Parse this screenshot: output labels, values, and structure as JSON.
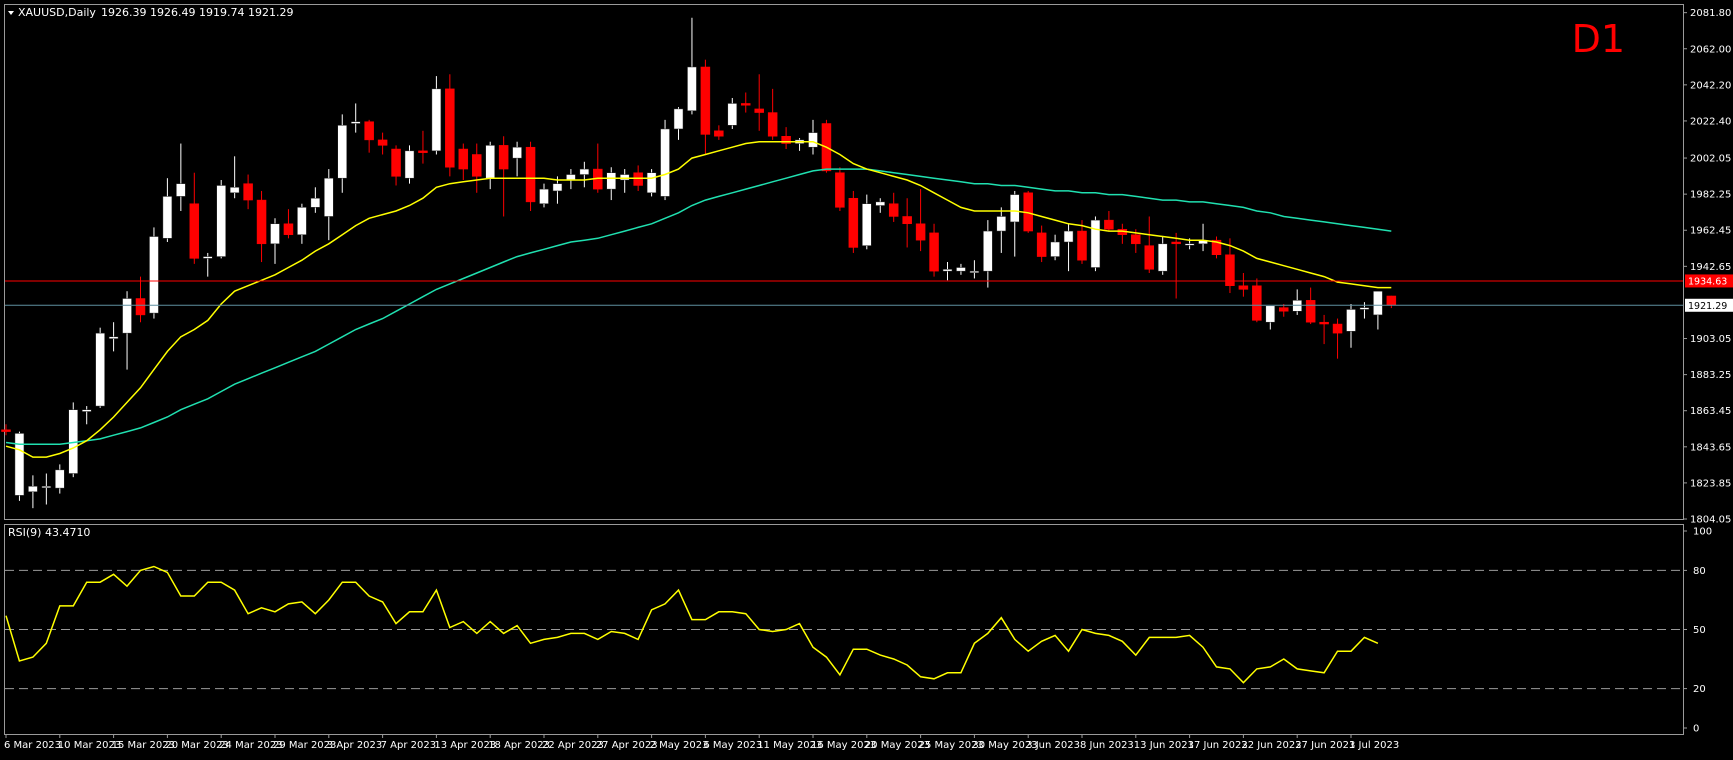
{
  "header": {
    "symbol_label": "XAUUSD,Daily",
    "ohlc_label": "1926.39 1926.49 1919.74 1921.29",
    "timeframe_badge": "D1"
  },
  "rsi_header": {
    "label": "RSI(9) 43.4710"
  },
  "colors": {
    "background": "#000000",
    "grid": "#9a9a9a",
    "bull_candle": "#ffffff",
    "bear_candle": "#ff0000",
    "ma_fast": "#ffff00",
    "ma_slow": "#20e0b0",
    "rsi_line": "#ffff00",
    "hline": "#ff0000",
    "price_line": "#5f8fa0",
    "badge": "#ff0000"
  },
  "chart_data": [
    {
      "type": "candlestick",
      "title": "XAUUSD,Daily",
      "y_ticks": [
        "2081.80",
        "2062.00",
        "2042.20",
        "2022.40",
        "2002.05",
        "1982.25",
        "1962.45",
        "1942.65",
        "1921.29",
        "1903.05",
        "1883.25",
        "1863.45",
        "1843.65",
        "1823.85",
        "1804.05"
      ],
      "y_tick_values": [
        2081.8,
        2062.0,
        2042.2,
        2022.4,
        2002.05,
        1982.25,
        1962.45,
        1942.65,
        1921.29,
        1903.05,
        1883.25,
        1863.45,
        1843.65,
        1823.85,
        1804.05
      ],
      "ylim": [
        1804.05,
        2086
      ],
      "x_tick_labels": [
        "6 Mar 2023",
        "10 Mar 2023",
        "15 Mar 2023",
        "20 Mar 2023",
        "24 Mar 2023",
        "29 Mar 2023",
        "3 Apr 2023",
        "7 Apr 2023",
        "13 Apr 2023",
        "18 Apr 2023",
        "22 Apr 2023",
        "27 Apr 2023",
        "2 May 2023",
        "6 May 2023",
        "11 May 2023",
        "16 May 2023",
        "20 May 2023",
        "25 May 2023",
        "30 May 2023",
        "3 Jun 2023",
        "8 Jun 2023",
        "13 Jun 2023",
        "17 Jun 2023",
        "22 Jun 2023",
        "27 Jun 2023",
        "1 Jul 2023"
      ],
      "x_tick_index": [
        0,
        4,
        8,
        12,
        16,
        20,
        24,
        28,
        32,
        36,
        40,
        44,
        48,
        52,
        56,
        60,
        64,
        68,
        72,
        76,
        80,
        84,
        88,
        92,
        96,
        100
      ],
      "horizontal_line": {
        "value": 1934.63,
        "label": "1934.63"
      },
      "current_price": {
        "value": 1921.29,
        "label": "1921.29"
      },
      "candles": [
        {
          "o": 1853,
          "h": 1856,
          "l": 1850,
          "c": 1852
        },
        {
          "o": 1817,
          "h": 1852,
          "l": 1814,
          "c": 1851
        },
        {
          "o": 1819,
          "h": 1828,
          "l": 1810,
          "c": 1822
        },
        {
          "o": 1822,
          "h": 1829,
          "l": 1812,
          "c": 1822
        },
        {
          "o": 1821,
          "h": 1834,
          "l": 1818,
          "c": 1831
        },
        {
          "o": 1829,
          "h": 1868,
          "l": 1827,
          "c": 1864
        },
        {
          "o": 1863,
          "h": 1866,
          "l": 1856,
          "c": 1864
        },
        {
          "o": 1866,
          "h": 1909,
          "l": 1865,
          "c": 1906
        },
        {
          "o": 1903,
          "h": 1912,
          "l": 1896,
          "c": 1904
        },
        {
          "o": 1906,
          "h": 1929,
          "l": 1886,
          "c": 1925
        },
        {
          "o": 1925,
          "h": 1937,
          "l": 1912,
          "c": 1916
        },
        {
          "o": 1917,
          "h": 1964,
          "l": 1914,
          "c": 1959
        },
        {
          "o": 1958,
          "h": 1991,
          "l": 1956,
          "c": 1981
        },
        {
          "o": 1981,
          "h": 2010,
          "l": 1973,
          "c": 1988
        },
        {
          "o": 1977,
          "h": 1994,
          "l": 1944,
          "c": 1947
        },
        {
          "o": 1947,
          "h": 1950,
          "l": 1937,
          "c": 1948
        },
        {
          "o": 1948,
          "h": 1990,
          "l": 1947,
          "c": 1987
        },
        {
          "o": 1983,
          "h": 2003,
          "l": 1980,
          "c": 1986
        },
        {
          "o": 1988,
          "h": 1993,
          "l": 1974,
          "c": 1979
        },
        {
          "o": 1979,
          "h": 1984,
          "l": 1945,
          "c": 1955
        },
        {
          "o": 1955,
          "h": 1969,
          "l": 1944,
          "c": 1966
        },
        {
          "o": 1966,
          "h": 1974,
          "l": 1958,
          "c": 1960
        },
        {
          "o": 1960,
          "h": 1977,
          "l": 1955,
          "c": 1975
        },
        {
          "o": 1975,
          "h": 1986,
          "l": 1972,
          "c": 1980
        },
        {
          "o": 1970,
          "h": 1996,
          "l": 1957,
          "c": 1991
        },
        {
          "o": 1991,
          "h": 2026,
          "l": 1983,
          "c": 2020
        },
        {
          "o": 2021,
          "h": 2032,
          "l": 2016,
          "c": 2022
        },
        {
          "o": 2022,
          "h": 2023,
          "l": 2005,
          "c": 2012
        },
        {
          "o": 2012,
          "h": 2016,
          "l": 2004,
          "c": 2009
        },
        {
          "o": 2007,
          "h": 2009,
          "l": 1987,
          "c": 1992
        },
        {
          "o": 1991,
          "h": 2009,
          "l": 1988,
          "c": 2006
        },
        {
          "o": 2006,
          "h": 2017,
          "l": 1999,
          "c": 2005
        },
        {
          "o": 2006,
          "h": 2047,
          "l": 2004,
          "c": 2040
        },
        {
          "o": 2040,
          "h": 2048,
          "l": 1992,
          "c": 1997
        },
        {
          "o": 2007,
          "h": 2010,
          "l": 1990,
          "c": 1996
        },
        {
          "o": 2004,
          "h": 2010,
          "l": 1983,
          "c": 1992
        },
        {
          "o": 1991,
          "h": 2011,
          "l": 1985,
          "c": 2009
        },
        {
          "o": 2009,
          "h": 2014,
          "l": 1970,
          "c": 1996
        },
        {
          "o": 2002,
          "h": 2011,
          "l": 1992,
          "c": 2008
        },
        {
          "o": 2008,
          "h": 2011,
          "l": 1973,
          "c": 1978
        },
        {
          "o": 1977,
          "h": 1988,
          "l": 1975,
          "c": 1985
        },
        {
          "o": 1984,
          "h": 1992,
          "l": 1977,
          "c": 1988
        },
        {
          "o": 1990,
          "h": 1996,
          "l": 1985,
          "c": 1993
        },
        {
          "o": 1993,
          "h": 2000,
          "l": 1986,
          "c": 1996
        },
        {
          "o": 1996,
          "h": 2010,
          "l": 1983,
          "c": 1985
        },
        {
          "o": 1985,
          "h": 1997,
          "l": 1979,
          "c": 1994
        },
        {
          "o": 1990,
          "h": 1996,
          "l": 1983,
          "c": 1993
        },
        {
          "o": 1994,
          "h": 1998,
          "l": 1984,
          "c": 1987
        },
        {
          "o": 1983,
          "h": 1996,
          "l": 1981,
          "c": 1994
        },
        {
          "o": 1981,
          "h": 2023,
          "l": 1979,
          "c": 2018
        },
        {
          "o": 2018,
          "h": 2030,
          "l": 2012,
          "c": 2029
        },
        {
          "o": 2028,
          "h": 2079,
          "l": 2026,
          "c": 2052
        },
        {
          "o": 2052,
          "h": 2056,
          "l": 2004,
          "c": 2015
        },
        {
          "o": 2017,
          "h": 2020,
          "l": 2012,
          "c": 2014
        },
        {
          "o": 2020,
          "h": 2035,
          "l": 2018,
          "c": 2032
        },
        {
          "o": 2032,
          "h": 2038,
          "l": 2027,
          "c": 2031
        },
        {
          "o": 2029,
          "h": 2048,
          "l": 2017,
          "c": 2027
        },
        {
          "o": 2027,
          "h": 2040,
          "l": 2012,
          "c": 2014
        },
        {
          "o": 2014,
          "h": 2019,
          "l": 2007,
          "c": 2010
        },
        {
          "o": 2010,
          "h": 2013,
          "l": 2006,
          "c": 2012
        },
        {
          "o": 2008,
          "h": 2023,
          "l": 2004,
          "c": 2016
        },
        {
          "o": 2021,
          "h": 2023,
          "l": 1994,
          "c": 1995
        },
        {
          "o": 1994,
          "h": 1997,
          "l": 1973,
          "c": 1975
        },
        {
          "o": 1980,
          "h": 1984,
          "l": 1950,
          "c": 1953
        },
        {
          "o": 1954,
          "h": 1982,
          "l": 1952,
          "c": 1977
        },
        {
          "o": 1976,
          "h": 1980,
          "l": 1972,
          "c": 1978
        },
        {
          "o": 1977,
          "h": 1983,
          "l": 1967,
          "c": 1970
        },
        {
          "o": 1970,
          "h": 1980,
          "l": 1953,
          "c": 1966
        },
        {
          "o": 1966,
          "h": 1985,
          "l": 1951,
          "c": 1957
        },
        {
          "o": 1961,
          "h": 1966,
          "l": 1937,
          "c": 1940
        },
        {
          "o": 1940,
          "h": 1945,
          "l": 1935,
          "c": 1941
        },
        {
          "o": 1940,
          "h": 1944,
          "l": 1938,
          "c": 1942
        },
        {
          "o": 1940,
          "h": 1946,
          "l": 1936,
          "c": 1940
        },
        {
          "o": 1940,
          "h": 1968,
          "l": 1931,
          "c": 1962
        },
        {
          "o": 1962,
          "h": 1975,
          "l": 1950,
          "c": 1970
        },
        {
          "o": 1967,
          "h": 1984,
          "l": 1948,
          "c": 1982
        },
        {
          "o": 1983,
          "h": 1984,
          "l": 1961,
          "c": 1962
        },
        {
          "o": 1961,
          "h": 1965,
          "l": 1945,
          "c": 1948
        },
        {
          "o": 1948,
          "h": 1960,
          "l": 1946,
          "c": 1956
        },
        {
          "o": 1956,
          "h": 1966,
          "l": 1940,
          "c": 1962
        },
        {
          "o": 1962,
          "h": 1968,
          "l": 1944,
          "c": 1946
        },
        {
          "o": 1942,
          "h": 1970,
          "l": 1940,
          "c": 1968
        },
        {
          "o": 1968,
          "h": 1973,
          "l": 1962,
          "c": 1963
        },
        {
          "o": 1963,
          "h": 1966,
          "l": 1955,
          "c": 1960
        },
        {
          "o": 1960,
          "h": 1963,
          "l": 1950,
          "c": 1955
        },
        {
          "o": 1954,
          "h": 1970,
          "l": 1939,
          "c": 1941
        },
        {
          "o": 1940,
          "h": 1959,
          "l": 1938,
          "c": 1955
        },
        {
          "o": 1956,
          "h": 1961,
          "l": 1925,
          "c": 1955
        },
        {
          "o": 1955,
          "h": 1958,
          "l": 1952,
          "c": 1955
        },
        {
          "o": 1955,
          "h": 1966,
          "l": 1951,
          "c": 1957
        },
        {
          "o": 1957,
          "h": 1959,
          "l": 1947,
          "c": 1949
        },
        {
          "o": 1949,
          "h": 1958,
          "l": 1928,
          "c": 1932
        },
        {
          "o": 1932,
          "h": 1939,
          "l": 1926,
          "c": 1930
        },
        {
          "o": 1932,
          "h": 1936,
          "l": 1912,
          "c": 1913
        },
        {
          "o": 1912,
          "h": 1920,
          "l": 1908,
          "c": 1921
        },
        {
          "o": 1920,
          "h": 1922,
          "l": 1915,
          "c": 1918
        },
        {
          "o": 1918,
          "h": 1930,
          "l": 1916,
          "c": 1924
        },
        {
          "o": 1924,
          "h": 1931,
          "l": 1911,
          "c": 1912
        },
        {
          "o": 1912,
          "h": 1916,
          "l": 1900,
          "c": 1911
        },
        {
          "o": 1911,
          "h": 1914,
          "l": 1892,
          "c": 1906
        },
        {
          "o": 1907,
          "h": 1922,
          "l": 1898,
          "c": 1919
        },
        {
          "o": 1919,
          "h": 1923,
          "l": 1914,
          "c": 1920
        },
        {
          "o": 1916,
          "h": 1929,
          "l": 1908,
          "c": 1929
        },
        {
          "o": 1926.39,
          "h": 1926.49,
          "l": 1919.74,
          "c": 1921.29
        }
      ],
      "ma_fast": [
        1844,
        1842,
        1838,
        1838,
        1840,
        1843,
        1847,
        1853,
        1860,
        1868,
        1876,
        1886,
        1896,
        1904,
        1908,
        1913,
        1922,
        1929,
        1932,
        1935,
        1938,
        1942,
        1946,
        1951,
        1955,
        1960,
        1965,
        1969,
        1971,
        1973,
        1976,
        1980,
        1986,
        1988,
        1989,
        1990,
        1991,
        1991,
        1991,
        1991,
        1991,
        1990,
        1990,
        1990,
        1991,
        1991,
        1991,
        1991,
        1991,
        1993,
        1996,
        2002,
        2004,
        2006,
        2008,
        2010,
        2011,
        2011,
        2011,
        2011,
        2011,
        2008,
        2004,
        1999,
        1996,
        1994,
        1992,
        1990,
        1987,
        1983,
        1979,
        1975,
        1973,
        1973,
        1973,
        1973,
        1972,
        1970,
        1968,
        1966,
        1965,
        1963,
        1962,
        1962,
        1961,
        1960,
        1959,
        1958,
        1957,
        1957,
        1956,
        1954,
        1951,
        1947,
        1945,
        1943,
        1941,
        1939,
        1937,
        1934,
        1933,
        1932,
        1931,
        1931
      ],
      "ma_slow": [
        1846,
        1845,
        1845,
        1845,
        1845,
        1846,
        1847,
        1848,
        1850,
        1852,
        1854,
        1857,
        1860,
        1864,
        1867,
        1870,
        1874,
        1878,
        1881,
        1884,
        1887,
        1890,
        1893,
        1896,
        1900,
        1904,
        1908,
        1911,
        1914,
        1918,
        1922,
        1926,
        1930,
        1933,
        1936,
        1939,
        1942,
        1945,
        1948,
        1950,
        1952,
        1954,
        1956,
        1957,
        1958,
        1960,
        1962,
        1964,
        1966,
        1969,
        1972,
        1976,
        1979,
        1981,
        1983,
        1985,
        1987,
        1989,
        1991,
        1993,
        1995,
        1996,
        1996,
        1996,
        1996,
        1995,
        1994,
        1993,
        1992,
        1991,
        1990,
        1989,
        1988,
        1988,
        1987,
        1987,
        1986,
        1985,
        1984,
        1984,
        1983,
        1983,
        1982,
        1982,
        1981,
        1980,
        1979,
        1979,
        1978,
        1978,
        1977,
        1976,
        1975,
        1973,
        1972,
        1970,
        1969,
        1968,
        1967,
        1966,
        1965,
        1964,
        1963,
        1962
      ]
    },
    {
      "type": "line",
      "title": "RSI(9) 43.4710",
      "ylim": [
        0,
        100
      ],
      "y_ticks": [
        100,
        80,
        50,
        20,
        0
      ],
      "levels": [
        80,
        50,
        20
      ],
      "values": [
        57,
        34,
        36,
        43,
        62,
        62,
        74,
        74,
        78,
        72,
        80,
        82,
        79,
        67,
        67,
        74,
        74,
        70,
        58,
        61,
        59,
        63,
        64,
        58,
        65,
        74,
        74,
        67,
        64,
        53,
        59,
        59,
        70,
        51,
        54,
        48,
        54,
        48,
        52,
        43,
        45,
        46,
        48,
        48,
        45,
        49,
        48,
        45,
        60,
        63,
        70,
        55,
        55,
        59,
        59,
        58,
        50,
        49,
        50,
        53,
        41,
        36,
        27,
        40,
        40,
        37,
        35,
        32,
        26,
        25,
        28,
        28,
        43,
        48,
        56,
        45,
        39,
        44,
        47,
        39,
        50,
        48,
        47,
        44,
        37,
        46,
        46,
        46,
        47,
        41,
        31,
        30,
        23,
        30,
        31,
        35,
        30,
        29,
        28,
        39,
        39,
        46,
        43
      ]
    }
  ]
}
